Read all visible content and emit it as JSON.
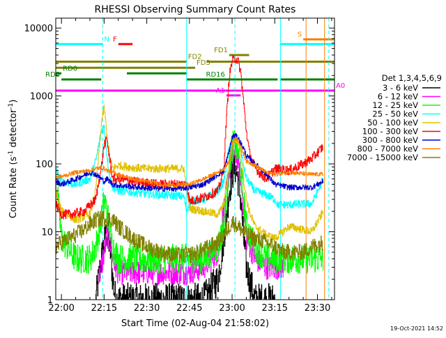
{
  "chart_data": {
    "type": "line",
    "title": "RHESSI Observing Summary Count Rates",
    "xlabel": "Start Time (02-Aug-04 21:58:02)",
    "ylabel": "Count Rate (s",
    "ylabel_sup1": "-1",
    "ylabel_mid": " detector",
    "ylabel_sup2": "-1",
    "ylabel_end": ")",
    "xlim": [
      -2.0,
      96.0
    ],
    "ylim": [
      1,
      14000
    ],
    "yscale": "log",
    "x_unit": "minutes after 22:00 UT",
    "xticks": [
      {
        "x": 0,
        "label": "22:00"
      },
      {
        "x": 15,
        "label": "22:15"
      },
      {
        "x": 30,
        "label": "22:30"
      },
      {
        "x": 45,
        "label": "22:45"
      },
      {
        "x": 60,
        "label": "23:00"
      },
      {
        "x": 75,
        "label": "23:15"
      },
      {
        "x": 90,
        "label": "23:30"
      }
    ],
    "yticks": [
      {
        "y": 1,
        "label": "1"
      },
      {
        "y": 10,
        "label": "10"
      },
      {
        "y": 100,
        "label": "100"
      },
      {
        "y": 1000,
        "label": "1000"
      },
      {
        "y": 10000,
        "label": "10000"
      }
    ],
    "legend_title": "Det 1,3,4,5,6,9",
    "legend_position": "right",
    "series": [
      {
        "name": "3 - 6 keV",
        "color": "#000000",
        "noise": 0.25,
        "x": [
          12,
          13,
          14,
          15,
          16,
          17,
          18,
          19,
          20,
          35,
          50,
          55,
          57,
          59,
          60,
          61,
          62,
          63,
          64,
          65,
          68,
          72,
          75
        ],
        "y": [
          1,
          2,
          4,
          7,
          10,
          6,
          2,
          1,
          1,
          1,
          1,
          2,
          8,
          40,
          70,
          90,
          60,
          30,
          8,
          3,
          1,
          1,
          1
        ]
      },
      {
        "name": "6 - 12 keV",
        "color": "#ff00ff",
        "noise": 0.18,
        "x": [
          13,
          14,
          15,
          16,
          17,
          18,
          19,
          20,
          22,
          45,
          50,
          55,
          57,
          59,
          60,
          61,
          62,
          63,
          64,
          65,
          68,
          72,
          75,
          78
        ],
        "y": [
          2,
          3,
          5,
          9,
          7,
          4,
          3,
          2.5,
          2.5,
          2.5,
          3,
          5,
          20,
          80,
          130,
          150,
          110,
          60,
          20,
          8,
          4,
          3,
          3,
          3
        ]
      },
      {
        "name": "12 - 25 keV",
        "color": "#00ff00",
        "noise": 0.22,
        "x": [
          -2,
          0,
          5,
          10,
          12,
          14,
          15,
          16,
          17,
          18,
          20,
          25,
          35,
          45,
          50,
          55,
          57,
          59,
          60,
          61,
          62,
          63,
          64,
          65,
          68,
          72,
          75,
          80,
          88,
          92
        ],
        "y": [
          60,
          8,
          4,
          4,
          6,
          15,
          30,
          20,
          10,
          6,
          4,
          4,
          4,
          4,
          4,
          6,
          12,
          100,
          180,
          200,
          150,
          80,
          30,
          12,
          6,
          4,
          4,
          4,
          4,
          4
        ]
      },
      {
        "name": "25 - 50 keV",
        "color": "#00ffff",
        "noise": 0.06,
        "x": [
          -2,
          0,
          5,
          10,
          12,
          14,
          15,
          16,
          17,
          18,
          20,
          25,
          30,
          35,
          40,
          43,
          44,
          45,
          50,
          55,
          57,
          59,
          60,
          61,
          62,
          63,
          64,
          65,
          68,
          72,
          75,
          76,
          80,
          88,
          92
        ],
        "y": [
          80,
          55,
          50,
          60,
          110,
          300,
          350,
          130,
          60,
          45,
          40,
          38,
          36,
          35,
          34,
          33,
          20,
          28,
          30,
          40,
          55,
          170,
          240,
          250,
          230,
          170,
          90,
          60,
          40,
          35,
          30,
          25,
          25,
          26,
          60
        ]
      },
      {
        "name": "50 - 100 keV",
        "color": "#e0c000",
        "noise": 0.06,
        "x": [
          -2,
          0,
          5,
          10,
          12,
          14,
          15,
          16,
          17,
          18,
          20,
          25,
          30,
          35,
          40,
          43,
          45,
          50,
          55,
          57,
          59,
          60,
          61,
          62,
          63,
          64,
          65,
          66,
          68,
          72,
          75,
          80,
          88,
          92
        ],
        "y": [
          40,
          20,
          15,
          18,
          40,
          400,
          700,
          250,
          120,
          85,
          95,
          88,
          85,
          85,
          85,
          85,
          22,
          20,
          18,
          25,
          100,
          200,
          230,
          220,
          150,
          60,
          30,
          20,
          12,
          9,
          8,
          12,
          10,
          20
        ]
      },
      {
        "name": "100 - 300 keV",
        "color": "#ff0000",
        "noise": 0.07,
        "x": [
          -2,
          0,
          3,
          8,
          12,
          14,
          15,
          16,
          17,
          18,
          20,
          25,
          30,
          35,
          40,
          44,
          45,
          50,
          55,
          57,
          58,
          59,
          60,
          61,
          62,
          63,
          64,
          65,
          66,
          67,
          68,
          70,
          72,
          75,
          80,
          85,
          88,
          92
        ],
        "y": [
          25,
          18,
          18,
          20,
          30,
          90,
          200,
          220,
          110,
          60,
          60,
          55,
          52,
          50,
          50,
          50,
          28,
          32,
          40,
          80,
          500,
          2000,
          3300,
          3600,
          3300,
          2200,
          800,
          300,
          150,
          110,
          90,
          70,
          60,
          85,
          80,
          100,
          120,
          180
        ]
      },
      {
        "name": "300 - 800 keV",
        "color": "#0000cc",
        "noise": 0.04,
        "x": [
          -2,
          0,
          5,
          10,
          12,
          14,
          15,
          16,
          17,
          18,
          20,
          25,
          30,
          35,
          40,
          43,
          45,
          50,
          55,
          57,
          59,
          60,
          61,
          62,
          63,
          64,
          65,
          68,
          72,
          75,
          80,
          88,
          92
        ],
        "y": [
          55,
          50,
          60,
          75,
          70,
          60,
          55,
          60,
          55,
          50,
          48,
          46,
          44,
          43,
          43,
          44,
          45,
          50,
          70,
          80,
          160,
          250,
          260,
          240,
          200,
          170,
          130,
          100,
          70,
          50,
          45,
          45,
          55
        ]
      },
      {
        "name": "800 - 7000 keV",
        "color": "#ff8000",
        "noise": 0.03,
        "x": [
          -2,
          0,
          5,
          10,
          12,
          14,
          15,
          16,
          17,
          18,
          20,
          25,
          30,
          35,
          40,
          45,
          50,
          55,
          57,
          59,
          60,
          61,
          62,
          63,
          64,
          65,
          68,
          72,
          75,
          80,
          88,
          92
        ],
        "y": [
          65,
          65,
          75,
          80,
          85,
          88,
          85,
          80,
          78,
          75,
          70,
          60,
          55,
          50,
          48,
          50,
          60,
          75,
          85,
          110,
          200,
          240,
          230,
          180,
          140,
          110,
          95,
          75,
          70,
          75,
          70,
          70
        ]
      },
      {
        "name": "7000 - 15000 keV",
        "color": "#808000",
        "noise": 0.12,
        "x": [
          -2,
          0,
          5,
          8,
          12,
          15,
          18,
          20,
          25,
          30,
          35,
          40,
          45,
          48,
          52,
          55,
          57,
          59,
          60,
          61,
          62,
          63,
          64,
          65,
          68,
          72,
          75,
          78,
          82,
          85,
          88,
          92
        ],
        "y": [
          6,
          7,
          9,
          11,
          15,
          16,
          15,
          12,
          8,
          6,
          5,
          4.5,
          4.5,
          5,
          6,
          7,
          9,
          12,
          14,
          13,
          12,
          11,
          10,
          9,
          8,
          7,
          6,
          5,
          5,
          5,
          6,
          7
        ]
      }
    ],
    "flag_bars": [
      {
        "label": "N",
        "color": "#00ffff",
        "segments": [
          [
            -2,
            14.5
          ],
          [
            77,
            96
          ]
        ],
        "y": 5800
      },
      {
        "label": "F",
        "color": "#ff0000",
        "segments": [
          [
            20,
            25
          ]
        ],
        "y": 5800
      },
      {
        "label": "S",
        "color": "#ff8000",
        "segments": [
          [
            85,
            96
          ]
        ],
        "y": 6800
      },
      {
        "label": "FD1",
        "color": "#808000",
        "segments": [
          [
            59,
            66
          ]
        ],
        "y": 4000
      },
      {
        "label": "FD2",
        "color": "#808000",
        "segments": [
          [
            -2,
            44
          ],
          [
            51,
            96
          ]
        ],
        "y": 3200
      },
      {
        "label": "FD3",
        "color": "#808000",
        "segments": [
          [
            -2,
            47
          ]
        ],
        "y": 2600
      },
      {
        "label": "RD0",
        "color": "#008000",
        "segments": [
          [
            -2,
            0
          ],
          [
            23,
            44
          ]
        ],
        "y": 2150
      },
      {
        "label": "RD8",
        "color": "#008000",
        "segments": [
          [
            0,
            14
          ],
          [
            44,
            60
          ],
          [
            77,
            96
          ]
        ],
        "y": 1750
      },
      {
        "label": "RD16",
        "color": "#008000",
        "segments": [
          [
            58,
            76
          ]
        ],
        "y": 1750
      },
      {
        "label": "A0",
        "color": "#ff00ff",
        "segments": [
          [
            -2,
            96
          ]
        ],
        "y": 1200
      },
      {
        "label": "A1",
        "color": "#ff00ff",
        "segments": [
          [
            58,
            63
          ]
        ],
        "y": 1020
      }
    ],
    "vertical_markers": [
      {
        "x": 14.5,
        "color": "#00ffff",
        "style": "dashed"
      },
      {
        "x": 44,
        "color": "#00ffff",
        "style": "solid"
      },
      {
        "x": 77,
        "color": "#00ffff",
        "style": "solid"
      },
      {
        "x": 86,
        "color": "#ff8000",
        "style": "solid"
      },
      {
        "x": 92.5,
        "color": "#ff8000",
        "style": "solid"
      },
      {
        "x": 94,
        "color": "#00ffff",
        "style": "dashed"
      },
      {
        "x": 61,
        "color": "#00ffff",
        "style": "dashed"
      }
    ]
  },
  "timestamp": "19-Oct-2021 14:52"
}
